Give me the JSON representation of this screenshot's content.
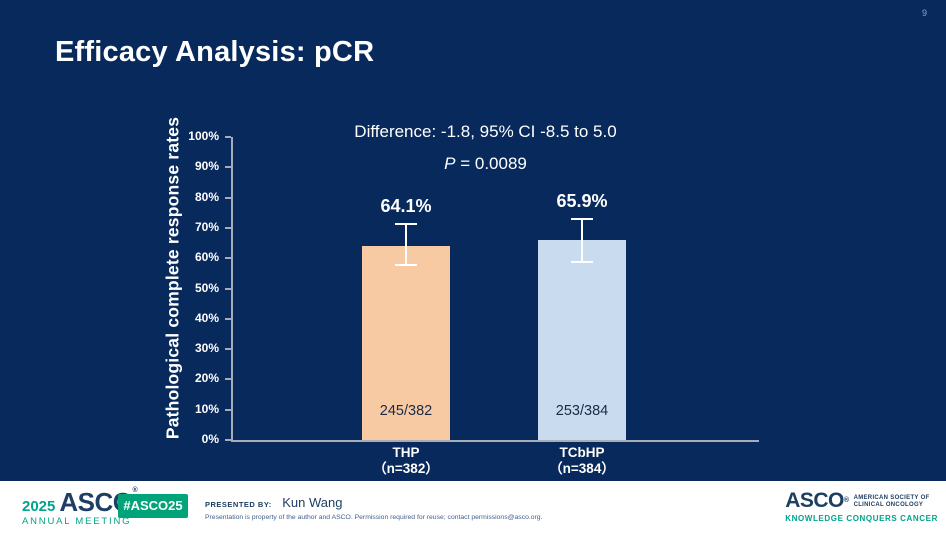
{
  "slide": {
    "page_number": "9",
    "title": "Efficacy Analysis: pCR",
    "colors": {
      "background": "#07295b",
      "axis": "#a6adb8",
      "text": "#ffffff"
    }
  },
  "chart_data": {
    "type": "bar",
    "annotation": {
      "line1": "Difference: -1.8, 95% CI -8.5 to 5.0",
      "p_italic": "P",
      "p_rest": " = 0.0089"
    },
    "ylabel": "Pathological complete response rates",
    "ylim": [
      0,
      100
    ],
    "ytick_step": 10,
    "ytick_labels": [
      "0%",
      "10%",
      "20%",
      "30%",
      "40%",
      "50%",
      "60%",
      "70%",
      "80%",
      "90%",
      "100%"
    ],
    "grid": false,
    "legend": "none",
    "bars": [
      {
        "category_line1": "THP",
        "category_line2": "（n=382）",
        "value": 64.1,
        "value_label": "64.1%",
        "fraction_label": "245/382",
        "color": "#f8caa4",
        "whisker_upper": 71.4,
        "whisker_lower": 57.8
      },
      {
        "category_line1": "TCbHP",
        "category_line2": "（n=384）",
        "value": 65.9,
        "value_label": "65.9%",
        "fraction_label": "253/384",
        "color": "#c9dbee",
        "whisker_upper": 73.0,
        "whisker_lower": 58.6
      }
    ]
  },
  "footer": {
    "logo_left": {
      "year": "2025",
      "name": "ASCO",
      "reg_mark": "®",
      "subtitle": "ANNUAL MEETING"
    },
    "hashtag_badge": {
      "label": "#ASCO25",
      "color": "#00a478"
    },
    "presented_by_label": "PRESENTED BY:",
    "presenter": "Kun Wang",
    "disclaimer": "Presentation is property of the author and ASCO. Permission required for reuse; contact permissions@asco.org.",
    "logo_right": {
      "name": "ASCO",
      "reg_mark": "®",
      "org_line1": "AMERICAN SOCIETY OF",
      "org_line2": "CLINICAL ONCOLOGY",
      "tagline": "KNOWLEDGE CONQUERS CANCER"
    },
    "colors": {
      "teal": "#00a489",
      "navy": "#1e3e63"
    }
  }
}
